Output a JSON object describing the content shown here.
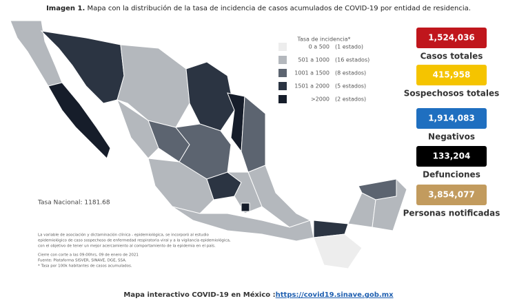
{
  "title": {
    "bold": "Imagen 1.",
    "text": "Mapa con la distribución de la tasa de incidencia de casos acumulados de COVID-19 por entidad de residencia."
  },
  "legend": {
    "title": "Tasa de incidencia*",
    "items": [
      {
        "range": "0 a 500",
        "count": "(1 estado)",
        "color": "#ededed"
      },
      {
        "range": "501 a 1000",
        "count": "(16 estados)",
        "color": "#b4b8bd"
      },
      {
        "range": "1001 a 1500",
        "count": "(8 estados)",
        "color": "#5c6470"
      },
      {
        "range": "1501 a 2000",
        "count": "(5 estados)",
        "color": "#2b3442"
      },
      {
        "range": ">2000",
        "count": "(2 estados)",
        "color": "#161d2a"
      }
    ]
  },
  "stats": [
    {
      "value": "1,524,036",
      "label": "Casos totales",
      "color": "#c0161c"
    },
    {
      "value": "415,958",
      "label": "Sospechosos totales",
      "color": "#f5c400"
    },
    {
      "value": "1,914,083",
      "label": "Negativos",
      "color": "#1f6fc0"
    },
    {
      "value": "133,204",
      "label": "Defunciones",
      "color": "#000000"
    },
    {
      "value": "3,854,077",
      "label": "Personas notificadas",
      "color": "#c29b5e"
    }
  ],
  "national_rate": "Tasa Nacional: 1181.68",
  "footnotes": [
    "La variable de asociación y dictaminación clínica - epidemiológica, se incorporó al estudio",
    "epidemiológico de caso sospechoso de enfermedad respiratoria viral y a la vigilancia epidemiológica,",
    "con el objetivo de tener un mejor acercamiento al comportamiento de la epidemia en el país.",
    "Cierre con corte a las 09:00hrs, 09 de enero de 2021",
    "Fuente: Plataforma SISVER, SINAVE, DGE, SSA.",
    "* Tasa por 100k habitantes de casos acumulados."
  ],
  "footer": {
    "text": "Mapa interactivo COVID-19 en México :",
    "link": "https://covid19.sinave.gob.mx"
  }
}
